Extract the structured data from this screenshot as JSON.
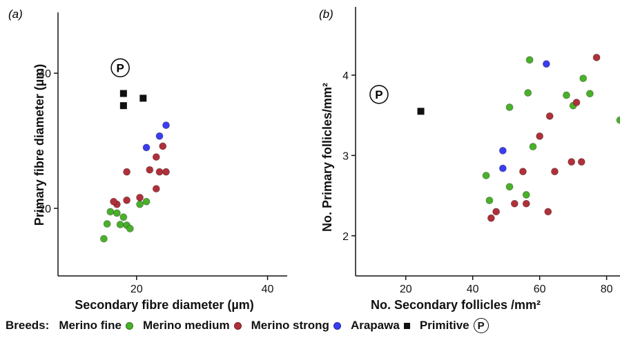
{
  "legend": {
    "prefix": "Breeds:",
    "items": [
      {
        "label": "Merino fine",
        "color": "#49b02a",
        "marker": "dot"
      },
      {
        "label": "Merino medium",
        "color": "#b0303a",
        "marker": "dot"
      },
      {
        "label": "Merino strong",
        "color": "#3a3df0",
        "marker": "dot"
      },
      {
        "label": "Arapawa",
        "color": "#111111",
        "marker": "square"
      },
      {
        "label": "Primitive",
        "color": "#111111",
        "marker": "circled-P"
      }
    ]
  },
  "chart_data": [
    {
      "type": "scatter",
      "panel_label": "(a)",
      "xlabel": "Secondary fibre diameter (µm)",
      "ylabel": "Primary fibre diameter (µm)",
      "xlim": [
        8,
        43
      ],
      "ylim": [
        10,
        49
      ],
      "xticks": [
        20,
        40
      ],
      "yticks": [
        20,
        40
      ],
      "primitive_marker": {
        "label": "P",
        "x": 17.5,
        "y": 40.8
      },
      "series": [
        {
          "name": "Merino fine",
          "color": "#49b02a",
          "x": [
            15.5,
            16.0,
            17.0,
            17.5,
            18.0,
            18.5,
            19.0,
            20.5,
            21.5,
            15.0
          ],
          "y": [
            17.7,
            19.5,
            19.3,
            17.6,
            18.7,
            17.5,
            17.0,
            20.6,
            21.0,
            15.5
          ]
        },
        {
          "name": "Merino medium",
          "color": "#b0303a",
          "x": [
            17.0,
            16.5,
            18.5,
            18.5,
            20.5,
            22.0,
            23.0,
            23.5,
            23.0,
            24.0,
            24.5
          ],
          "y": [
            20.6,
            21.0,
            21.2,
            25.4,
            21.6,
            25.7,
            27.6,
            25.4,
            22.9,
            29.2,
            25.4
          ]
        },
        {
          "name": "Merino strong",
          "color": "#3a3df0",
          "x": [
            21.5,
            23.5,
            24.5
          ],
          "y": [
            29.0,
            30.7,
            32.3
          ]
        },
        {
          "name": "Arapawa",
          "color": "#111111",
          "x": [
            18.0,
            18.0,
            21.0
          ],
          "y": [
            37.0,
            35.2,
            36.3
          ]
        }
      ]
    },
    {
      "type": "scatter",
      "panel_label": "(b)",
      "xlabel": "No. Secondary follicles /mm²",
      "ylabel": "No. Primary follicles/mm²",
      "xlim": [
        5,
        84
      ],
      "ylim": [
        1.5,
        4.85
      ],
      "xticks": [
        20,
        40,
        60,
        80
      ],
      "yticks": [
        2,
        3,
        4
      ],
      "primitive_marker": {
        "label": "P",
        "x": 12.0,
        "y": 3.76
      },
      "series": [
        {
          "name": "Merino fine",
          "color": "#49b02a",
          "x": [
            44.0,
            45.0,
            51.0,
            51.0,
            56.0,
            56.5,
            57.0,
            58.0,
            68.0,
            70.0,
            73.0,
            75.0,
            84.0
          ],
          "y": [
            2.75,
            2.44,
            2.61,
            3.6,
            2.51,
            3.78,
            4.19,
            3.11,
            3.75,
            3.62,
            3.96,
            3.77,
            3.44
          ]
        },
        {
          "name": "Merino medium",
          "color": "#b0303a",
          "x": [
            45.5,
            47.0,
            52.5,
            55.0,
            56.0,
            60.0,
            63.0,
            62.5,
            64.5,
            69.5,
            71.0,
            72.5,
            77.0
          ],
          "y": [
            2.22,
            2.3,
            2.4,
            2.8,
            2.4,
            3.24,
            3.49,
            2.3,
            2.8,
            2.92,
            3.66,
            2.92,
            4.22
          ]
        },
        {
          "name": "Merino strong",
          "color": "#3a3df0",
          "x": [
            49.0,
            49.0,
            62.0
          ],
          "y": [
            3.06,
            2.84,
            4.14
          ]
        },
        {
          "name": "Arapawa",
          "color": "#111111",
          "x": [
            24.5
          ],
          "y": [
            3.55
          ]
        }
      ]
    }
  ]
}
